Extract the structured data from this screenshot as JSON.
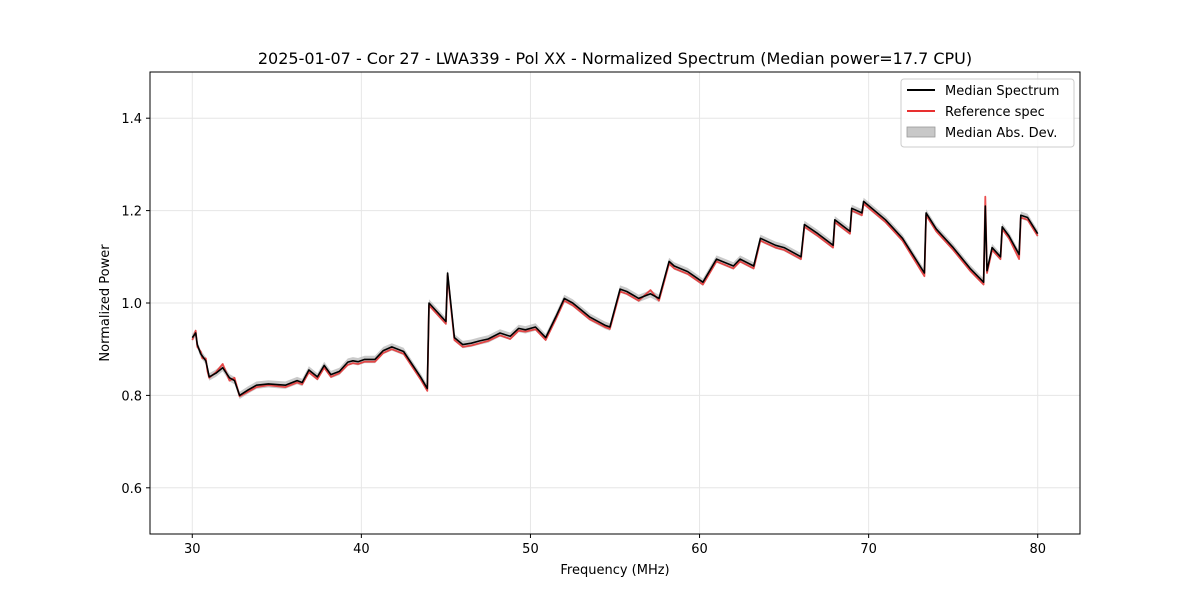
{
  "chart_data": {
    "type": "line",
    "title": "2025-01-07 - Cor 27 - LWA339 - Pol XX - Normalized Spectrum (Median power=17.7 CPU)",
    "xlabel": "Frequency (MHz)",
    "ylabel": "Normalized Power",
    "xlim": [
      27.5,
      82.5
    ],
    "ylim": [
      0.5,
      1.5
    ],
    "xticks": [
      30,
      40,
      50,
      60,
      70,
      80
    ],
    "yticks": [
      0.6,
      0.8,
      1.0,
      1.2,
      1.4
    ],
    "xtick_labels": [
      "30",
      "40",
      "50",
      "60",
      "70",
      "80"
    ],
    "ytick_labels": [
      "0.6",
      "0.8",
      "1.0",
      "1.2",
      "1.4"
    ],
    "grid": true,
    "legend_position": "top-right",
    "mad_halfwidth": 0.008,
    "series": [
      {
        "name": "Median Spectrum",
        "color": "#000000",
        "x": [
          30.0,
          30.2,
          30.3,
          30.5,
          30.6,
          30.8,
          30.9,
          31.0,
          31.4,
          31.8,
          32.2,
          32.5,
          32.8,
          33.3,
          33.8,
          34.5,
          35.5,
          36.2,
          36.5,
          36.9,
          37.4,
          37.8,
          38.2,
          38.7,
          39.2,
          39.5,
          39.8,
          40.2,
          40.8,
          41.3,
          41.8,
          42.5,
          43.5,
          43.9,
          44.0,
          45.0,
          45.1,
          45.5,
          46.0,
          46.5,
          47.0,
          47.5,
          48.2,
          48.8,
          49.3,
          49.7,
          50.3,
          50.9,
          51.5,
          52.0,
          52.5,
          53.5,
          54.4,
          54.7,
          55.3,
          55.7,
          56.4,
          57.1,
          57.6,
          58.2,
          58.5,
          59.3,
          60.2,
          60.6,
          61.0,
          62.0,
          62.4,
          63.2,
          63.6,
          64.5,
          65.0,
          66.0,
          66.2,
          67.0,
          67.9,
          68.0,
          68.9,
          69.0,
          69.6,
          69.7,
          71.0,
          72.0,
          73.3,
          73.4,
          74.0,
          75.0,
          76.0,
          76.8,
          76.9,
          77.0,
          77.3,
          77.8,
          77.9,
          78.3,
          78.9,
          79.0,
          79.4,
          80.0
        ],
        "y": [
          0.925,
          0.935,
          0.91,
          0.89,
          0.885,
          0.875,
          0.858,
          0.84,
          0.848,
          0.86,
          0.838,
          0.832,
          0.8,
          0.812,
          0.822,
          0.825,
          0.822,
          0.832,
          0.828,
          0.855,
          0.84,
          0.865,
          0.845,
          0.852,
          0.872,
          0.875,
          0.873,
          0.878,
          0.878,
          0.897,
          0.905,
          0.895,
          0.84,
          0.815,
          1.0,
          0.96,
          1.065,
          0.925,
          0.91,
          0.913,
          0.918,
          0.922,
          0.935,
          0.928,
          0.945,
          0.942,
          0.948,
          0.925,
          0.97,
          1.01,
          1.0,
          0.97,
          0.952,
          0.948,
          1.03,
          1.025,
          1.01,
          1.02,
          1.01,
          1.09,
          1.08,
          1.068,
          1.045,
          1.07,
          1.095,
          1.08,
          1.095,
          1.08,
          1.14,
          1.125,
          1.12,
          1.1,
          1.17,
          1.15,
          1.125,
          1.18,
          1.155,
          1.205,
          1.195,
          1.22,
          1.18,
          1.14,
          1.065,
          1.195,
          1.16,
          1.12,
          1.075,
          1.045,
          1.21,
          1.07,
          1.12,
          1.1,
          1.165,
          1.145,
          1.105,
          1.19,
          1.185,
          1.15
        ]
      },
      {
        "name": "Reference spec",
        "color": "#e83030",
        "x": [
          30.0,
          30.2,
          30.3,
          30.5,
          30.6,
          30.8,
          30.9,
          31.0,
          31.4,
          31.8,
          32.2,
          32.5,
          32.8,
          33.3,
          33.8,
          34.5,
          35.5,
          36.2,
          36.5,
          36.9,
          37.4,
          37.8,
          38.2,
          38.7,
          39.2,
          39.5,
          39.8,
          40.2,
          40.8,
          41.3,
          41.8,
          42.5,
          43.5,
          43.9,
          44.0,
          45.0,
          45.1,
          45.5,
          46.0,
          46.5,
          47.0,
          47.5,
          48.2,
          48.8,
          49.3,
          49.7,
          50.3,
          50.9,
          51.5,
          52.0,
          52.5,
          53.5,
          54.4,
          54.7,
          55.3,
          55.7,
          56.4,
          57.1,
          57.6,
          58.2,
          58.5,
          59.3,
          60.2,
          60.6,
          61.0,
          62.0,
          62.4,
          63.2,
          63.6,
          64.5,
          65.0,
          66.0,
          66.2,
          67.0,
          67.9,
          68.0,
          68.9,
          69.0,
          69.6,
          69.7,
          71.0,
          72.0,
          73.3,
          73.4,
          74.0,
          75.0,
          76.0,
          76.8,
          76.9,
          77.0,
          77.3,
          77.8,
          77.9,
          78.3,
          78.9,
          79.0,
          79.4,
          80.0
        ],
        "y": [
          0.92,
          0.94,
          0.905,
          0.895,
          0.88,
          0.88,
          0.852,
          0.838,
          0.85,
          0.868,
          0.832,
          0.838,
          0.798,
          0.808,
          0.818,
          0.822,
          0.818,
          0.828,
          0.824,
          0.85,
          0.835,
          0.86,
          0.84,
          0.848,
          0.866,
          0.87,
          0.868,
          0.873,
          0.873,
          0.892,
          0.9,
          0.89,
          0.835,
          0.81,
          0.995,
          0.955,
          1.06,
          0.92,
          0.905,
          0.908,
          0.913,
          0.918,
          0.93,
          0.922,
          0.94,
          0.938,
          0.943,
          0.92,
          0.965,
          1.005,
          0.995,
          0.965,
          0.948,
          0.944,
          1.025,
          1.02,
          1.005,
          1.028,
          1.005,
          1.085,
          1.075,
          1.063,
          1.04,
          1.065,
          1.09,
          1.075,
          1.09,
          1.075,
          1.135,
          1.12,
          1.115,
          1.095,
          1.165,
          1.145,
          1.12,
          1.175,
          1.15,
          1.2,
          1.19,
          1.215,
          1.175,
          1.135,
          1.058,
          1.19,
          1.155,
          1.115,
          1.07,
          1.04,
          1.23,
          1.065,
          1.115,
          1.095,
          1.16,
          1.14,
          1.095,
          1.185,
          1.18,
          1.145
        ]
      }
    ],
    "legend": [
      {
        "label": "Median Spectrum",
        "kind": "line",
        "color": "#000000"
      },
      {
        "label": "Reference spec",
        "kind": "line",
        "color": "#e83030"
      },
      {
        "label": "Median Abs. Dev.",
        "kind": "patch",
        "color": "#c8c8c8"
      }
    ]
  }
}
